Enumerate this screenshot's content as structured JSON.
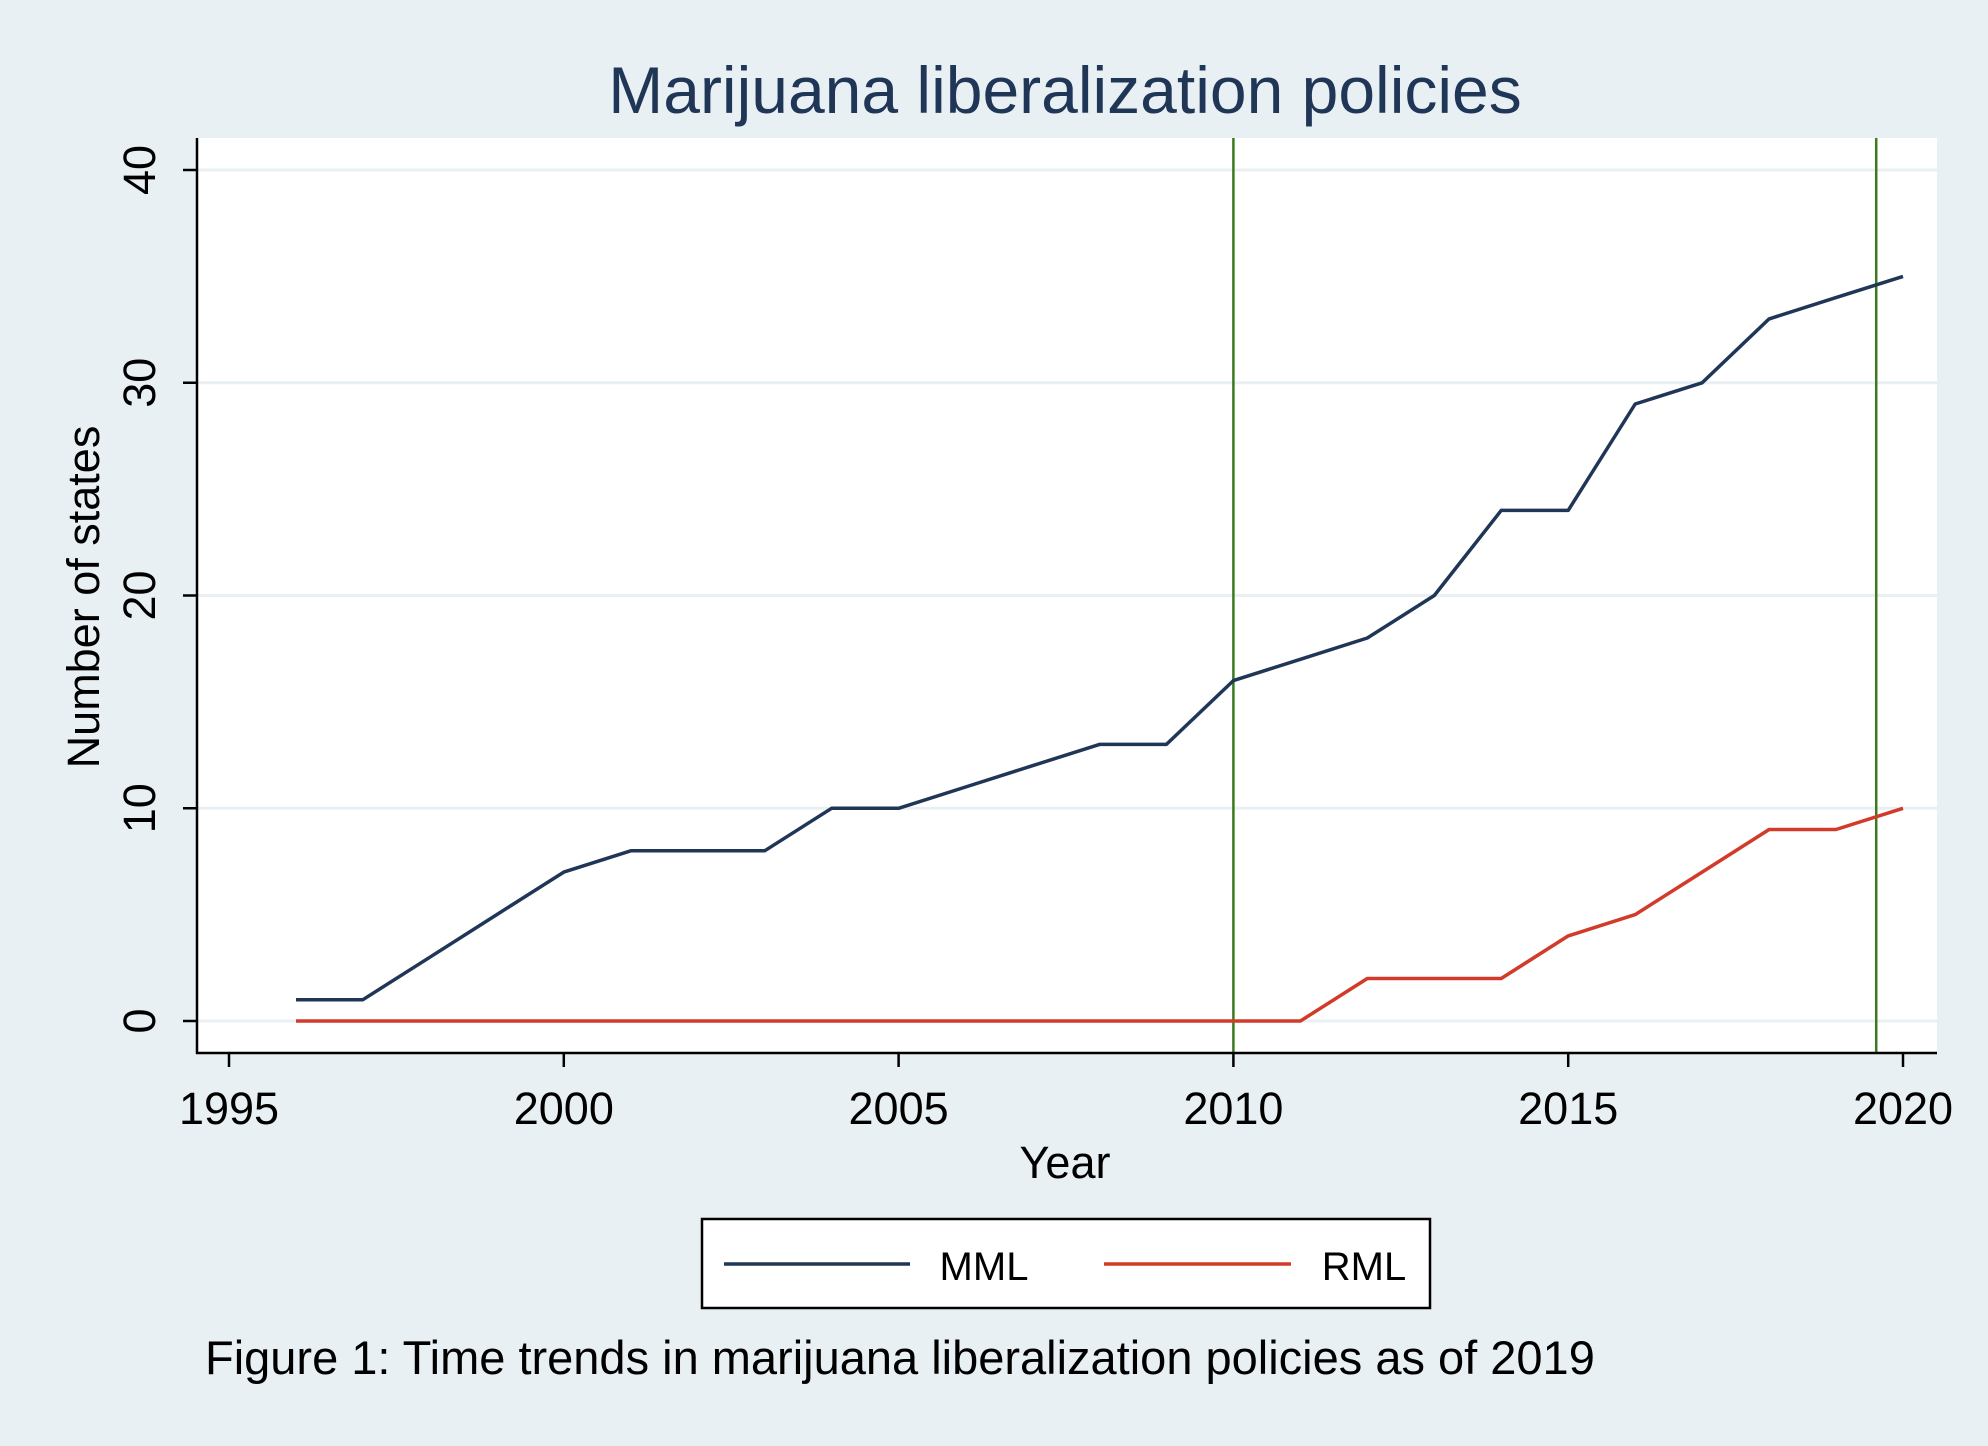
{
  "chart_data": {
    "type": "line",
    "title": "Marijuana liberalization policies",
    "xlabel": "Year",
    "ylabel": "Number of states",
    "xlim": [
      1995,
      2020
    ],
    "ylim": [
      0,
      40
    ],
    "xticks": [
      "1995",
      "2000",
      "2005",
      "2010",
      "2015",
      "2020"
    ],
    "yticks": [
      "0",
      "10",
      "20",
      "30",
      "40"
    ],
    "grid": "horizontal",
    "legend_position": "bottom",
    "reference_lines_x": [
      2010,
      2019.6
    ],
    "x": [
      1996,
      1997,
      1998,
      1999,
      2000,
      2001,
      2002,
      2003,
      2004,
      2005,
      2006,
      2007,
      2008,
      2009,
      2010,
      2011,
      2012,
      2013,
      2014,
      2015,
      2016,
      2017,
      2018,
      2019,
      2020
    ],
    "series": [
      {
        "name": "MML",
        "color": "#1f3657",
        "values": [
          1,
          1,
          3,
          5,
          7,
          8,
          8,
          8,
          10,
          10,
          11,
          12,
          13,
          13,
          16,
          17,
          18,
          20,
          24,
          24,
          29,
          30,
          33,
          34,
          35
        ]
      },
      {
        "name": "RML",
        "color": "#d23a2a",
        "values": [
          0,
          0,
          0,
          0,
          0,
          0,
          0,
          0,
          0,
          0,
          0,
          0,
          0,
          0,
          0,
          0,
          2,
          2,
          2,
          4,
          5,
          7,
          9,
          9,
          10
        ]
      }
    ]
  },
  "colors": {
    "background": "#e9f0f3",
    "plot_area": "#ffffff",
    "gridline": "#e9f0f3",
    "reference_line": "#3b7a1e",
    "title": "#1f3657"
  },
  "caption": "Figure 1: Time trends in marijuana liberalization policies as of 2019"
}
